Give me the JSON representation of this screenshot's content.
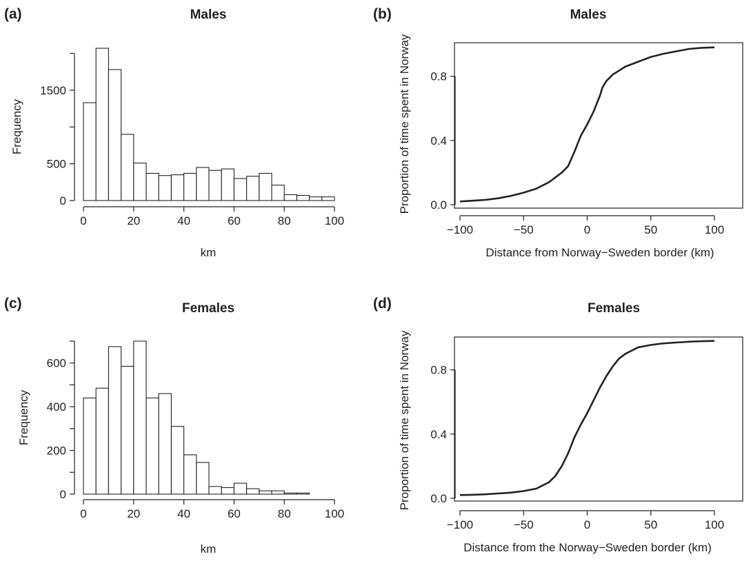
{
  "chart_data": [
    {
      "id": "a",
      "type": "bar",
      "panel_label": "(a)",
      "title": "Males",
      "xlabel": "km",
      "ylabel": "Frequency",
      "bin_edges": [
        0,
        5,
        10,
        15,
        20,
        25,
        30,
        35,
        40,
        45,
        50,
        55,
        60,
        65,
        70,
        75,
        80,
        85,
        90,
        95,
        100
      ],
      "values": [
        1330,
        2070,
        1780,
        900,
        510,
        370,
        340,
        350,
        370,
        450,
        410,
        430,
        300,
        330,
        370,
        210,
        80,
        70,
        50,
        50
      ],
      "xlim": [
        0,
        100
      ],
      "ylim": [
        0,
        2070
      ],
      "xticks": [
        "0",
        "20",
        "40",
        "60",
        "80",
        "100"
      ],
      "yticks": [
        "0",
        "500",
        "1500"
      ],
      "yminor_ticks": [
        1000,
        2000
      ],
      "grid": false
    },
    {
      "id": "b",
      "type": "line",
      "panel_label": "(b)",
      "title": "Males",
      "xlabel": "Distance from Norway−Sweden border (km)",
      "ylabel": "Proportion of time spent in Norway",
      "x": [
        -100,
        -90,
        -80,
        -70,
        -60,
        -50,
        -40,
        -30,
        -20,
        -15,
        -10,
        -5,
        0,
        5,
        10,
        12,
        15,
        20,
        30,
        40,
        50,
        60,
        70,
        80,
        90,
        100
      ],
      "y": [
        0.02,
        0.025,
        0.03,
        0.04,
        0.055,
        0.075,
        0.1,
        0.14,
        0.2,
        0.24,
        0.33,
        0.43,
        0.5,
        0.58,
        0.68,
        0.73,
        0.77,
        0.81,
        0.86,
        0.89,
        0.92,
        0.94,
        0.955,
        0.97,
        0.977,
        0.98
      ],
      "xlim": [
        -100,
        100
      ],
      "ylim": [
        0,
        1
      ],
      "xticks": [
        "−100",
        "−50",
        "0",
        "50",
        "100"
      ],
      "yticks": [
        "0.0",
        "0.4",
        "0.8"
      ],
      "grid": false
    },
    {
      "id": "c",
      "type": "bar",
      "panel_label": "(c)",
      "title": "Females",
      "xlabel": "km",
      "ylabel": "Frequency",
      "bin_edges": [
        0,
        5,
        10,
        15,
        20,
        25,
        30,
        35,
        40,
        45,
        50,
        55,
        60,
        65,
        70,
        75,
        80,
        85,
        90
      ],
      "values": [
        440,
        485,
        675,
        585,
        700,
        440,
        460,
        310,
        180,
        145,
        35,
        30,
        50,
        25,
        15,
        15,
        5,
        5
      ],
      "xlim": [
        0,
        100
      ],
      "ylim": [
        0,
        700
      ],
      "xticks": [
        "0",
        "20",
        "40",
        "60",
        "80",
        "100"
      ],
      "yticks": [
        "0",
        "200",
        "400",
        "600"
      ],
      "yminor_ticks": [
        100,
        300,
        500,
        700
      ],
      "grid": false
    },
    {
      "id": "d",
      "type": "line",
      "panel_label": "(d)",
      "title": "Females",
      "xlabel": "Distance from the Norway−Sweden border (km)",
      "ylabel": "Proportion of time spent in Norway",
      "x": [
        -100,
        -90,
        -80,
        -70,
        -60,
        -50,
        -40,
        -30,
        -25,
        -20,
        -15,
        -10,
        -5,
        0,
        5,
        10,
        15,
        20,
        25,
        30,
        40,
        50,
        60,
        70,
        80,
        90,
        100
      ],
      "y": [
        0.02,
        0.022,
        0.025,
        0.03,
        0.035,
        0.045,
        0.06,
        0.1,
        0.14,
        0.2,
        0.28,
        0.38,
        0.46,
        0.53,
        0.61,
        0.69,
        0.76,
        0.82,
        0.87,
        0.9,
        0.94,
        0.955,
        0.965,
        0.97,
        0.975,
        0.978,
        0.98
      ],
      "xlim": [
        -100,
        100
      ],
      "ylim": [
        0,
        1
      ],
      "xticks": [
        "−100",
        "−50",
        "0",
        "50",
        "100"
      ],
      "yticks": [
        "0.0",
        "0.4",
        "0.8"
      ],
      "grid": false
    }
  ]
}
